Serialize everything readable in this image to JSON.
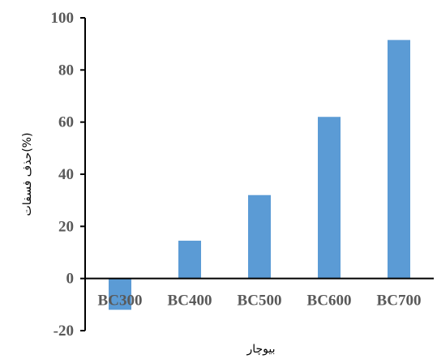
{
  "chart_data": {
    "type": "bar",
    "categories": [
      "BC300",
      "BC400",
      "BC500",
      "BC600",
      "BC700"
    ],
    "values": [
      -12,
      14.5,
      32,
      62,
      91.5
    ],
    "xlabel": "بیوچار",
    "ylabel": "حذف فسفات(%)",
    "ylim": [
      -20,
      100
    ],
    "yticks": [
      -20,
      0,
      20,
      40,
      60,
      80,
      100
    ],
    "grid": false,
    "legend": "none",
    "colors": {
      "bar": "#5B9BD5",
      "axis": "#000000",
      "text": "#595959"
    }
  }
}
